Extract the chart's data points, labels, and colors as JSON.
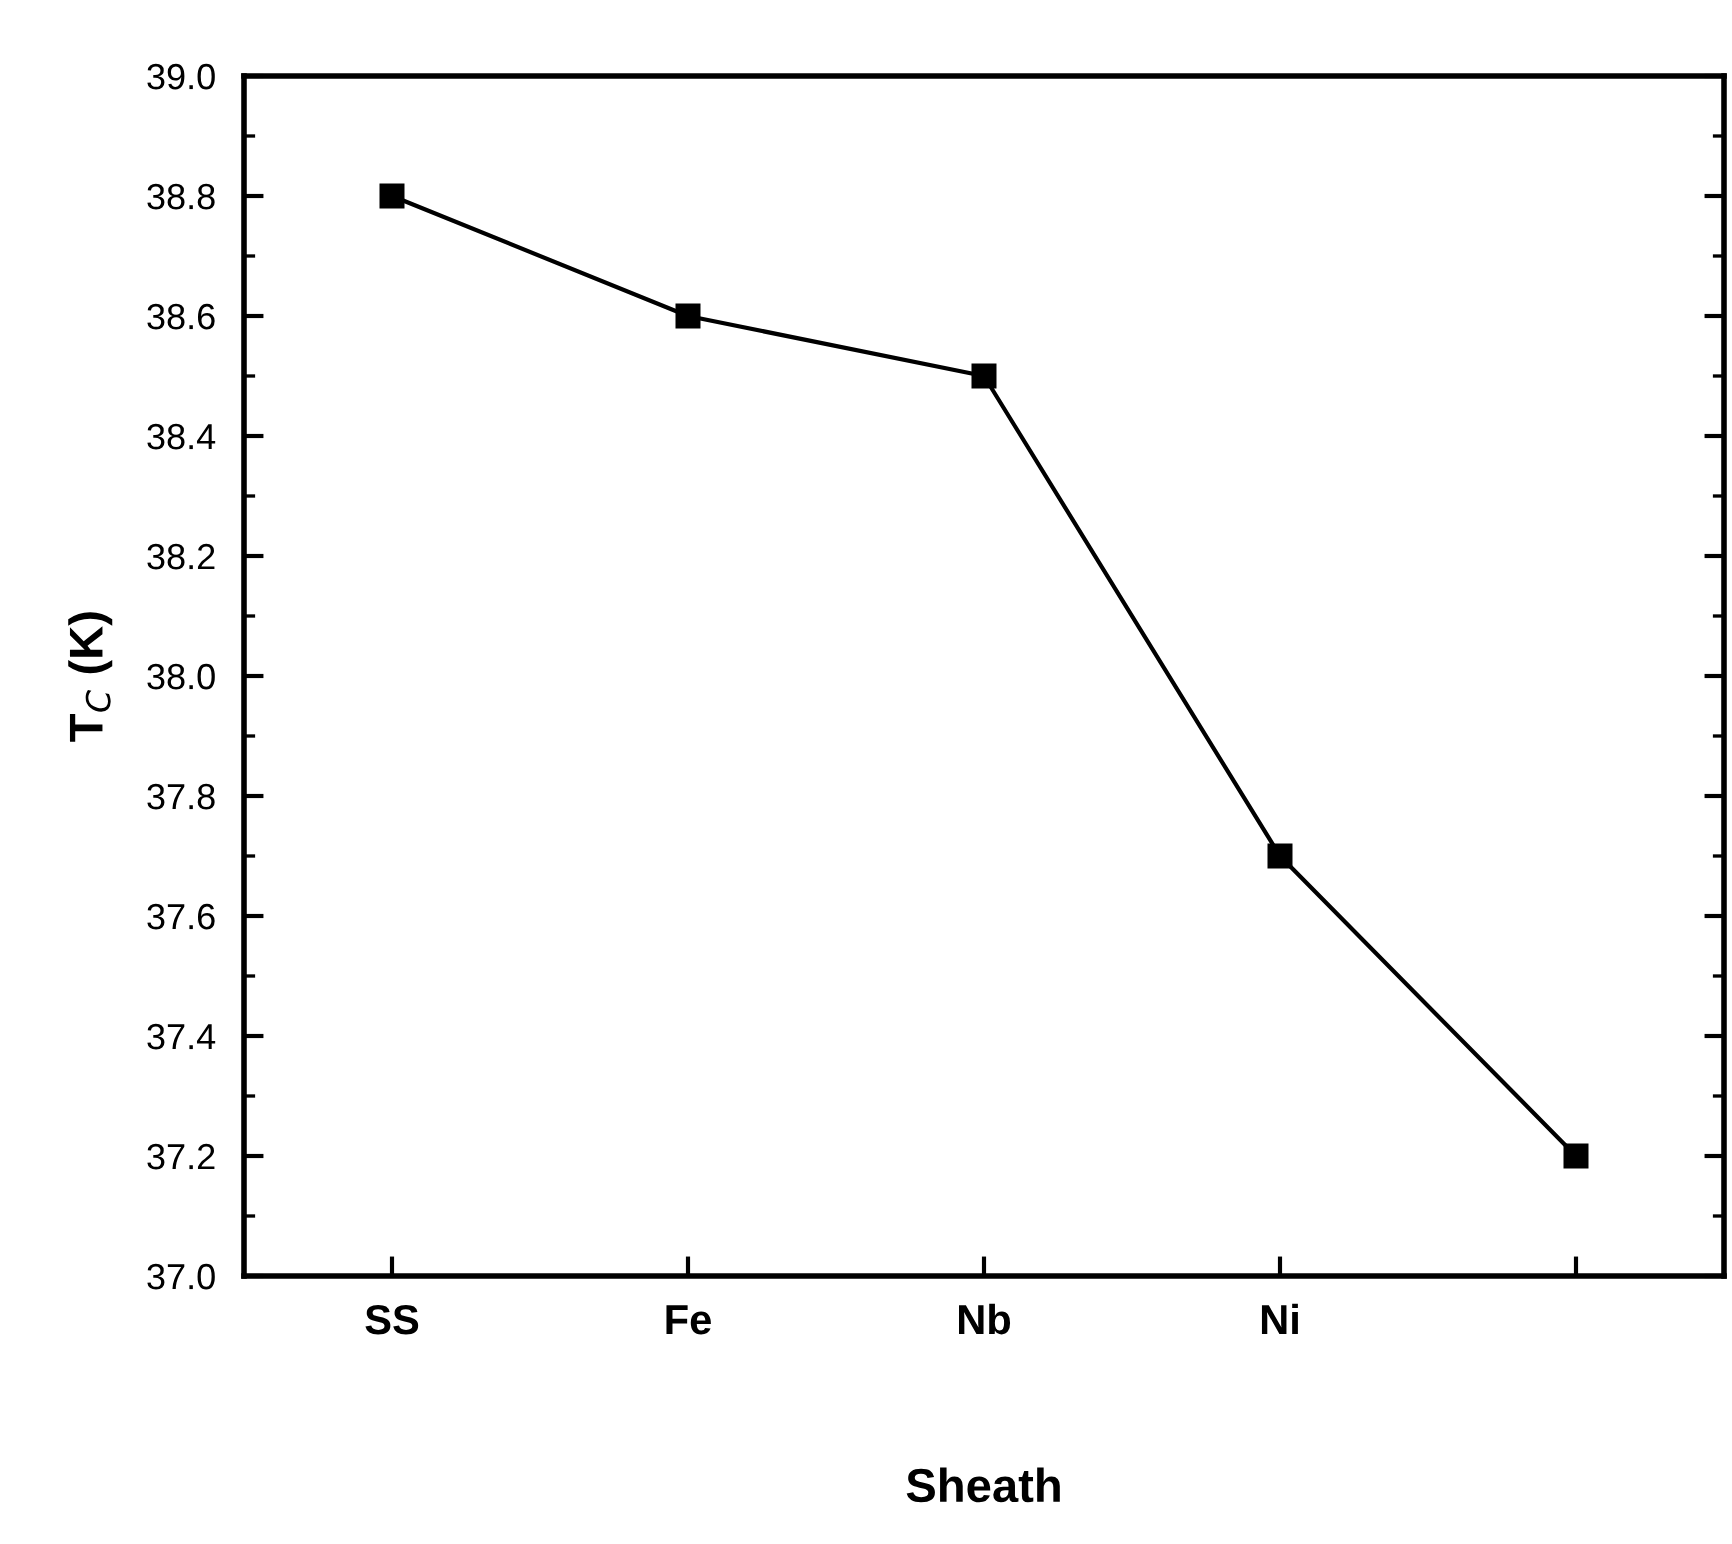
{
  "chart_data": {
    "type": "line",
    "xlabel": "Sheath",
    "ylabel": "T$_{C}$ (K)",
    "categories": [
      "SS",
      "Fe",
      "Nb",
      "Ni",
      null
    ],
    "series": [
      {
        "color": "#000000",
        "values": [
          38.8,
          38.6,
          38.5,
          37.7,
          37.2
        ]
      }
    ],
    "marker": "square",
    "line_style": "solid",
    "grid": false,
    "ylim": [
      37.0,
      39.0
    ],
    "yticks": [
      {
        "value": 37.0,
        "label": "37.0"
      },
      {
        "value": 37.2,
        "label": "37.2"
      },
      {
        "value": 37.4,
        "label": "37.4"
      },
      {
        "value": 37.6,
        "label": "37.6"
      },
      {
        "value": 37.8,
        "label": "37.8"
      },
      {
        "value": 38.0,
        "label": "38.0"
      },
      {
        "value": 38.2,
        "label": "38.2"
      },
      {
        "value": 38.4,
        "label": "38.4"
      },
      {
        "value": 38.6,
        "label": "38.6"
      },
      {
        "value": 38.8,
        "label": "38.8"
      },
      {
        "value": 39.0,
        "label": "39.0"
      }
    ]
  }
}
